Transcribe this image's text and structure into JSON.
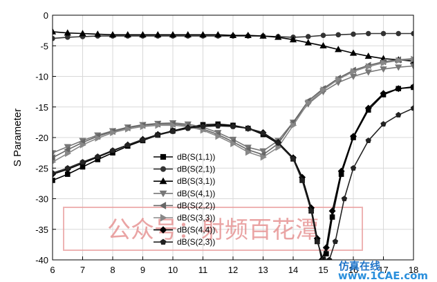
{
  "chart_data": {
    "type": "line",
    "title": "",
    "xlabel": "",
    "ylabel": "S Parameter",
    "xlim": [
      6,
      18
    ],
    "ylim": [
      -40,
      0
    ],
    "xticks": [
      6,
      7,
      8,
      9,
      10,
      11,
      12,
      13,
      14,
      15,
      16,
      17,
      18
    ],
    "yticks": [
      0,
      -5,
      -10,
      -15,
      -20,
      -25,
      -30,
      -35,
      -40
    ],
    "grid": true,
    "legend_position": "center-left",
    "series": [
      {
        "name": "dB(S(1,1))",
        "color": "#000000",
        "marker": "square",
        "x": [
          6,
          6.5,
          7,
          7.5,
          8,
          8.5,
          9,
          9.5,
          10,
          10.5,
          11,
          11.5,
          12,
          12.5,
          13,
          13.5,
          14,
          14.3,
          14.6,
          14.8,
          15.0,
          15.1,
          15.3,
          15.6,
          16,
          16.5,
          17,
          17.5,
          18
        ],
        "y": [
          -27,
          -26,
          -24.8,
          -23.6,
          -22.5,
          -21.4,
          -20.5,
          -19.6,
          -18.9,
          -18.3,
          -17.9,
          -17.8,
          -18,
          -18.5,
          -19.5,
          -21,
          -23.5,
          -27,
          -32,
          -37,
          -40,
          -39,
          -33,
          -26,
          -20,
          -15.5,
          -13,
          -12,
          -11.8
        ]
      },
      {
        "name": "dB(S(2,1))",
        "color": "#333333",
        "marker": "circle",
        "x": [
          6,
          6.5,
          7,
          7.5,
          8,
          8.5,
          9,
          9.5,
          10,
          10.5,
          11,
          11.5,
          12,
          12.5,
          13,
          13.5,
          14,
          14.5,
          15,
          15.5,
          16,
          16.5,
          17,
          17.5,
          18
        ],
        "y": [
          -3.8,
          -3.6,
          -3.5,
          -3.4,
          -3.4,
          -3.4,
          -3.4,
          -3.4,
          -3.4,
          -3.4,
          -3.4,
          -3.4,
          -3.4,
          -3.4,
          -3.4,
          -3.5,
          -3.6,
          -3.5,
          -3.3,
          -3.2,
          -3.1,
          -3.0,
          -3.0,
          -3.0,
          -3.0
        ]
      },
      {
        "name": "dB(S(3,1))",
        "color": "#000000",
        "marker": "triangle",
        "x": [
          6,
          6.5,
          7,
          7.5,
          8,
          8.5,
          9,
          9.5,
          10,
          10.5,
          11,
          11.5,
          12,
          12.5,
          13,
          13.5,
          14,
          14.5,
          15,
          15.5,
          16,
          16.5,
          17,
          17.5,
          18
        ],
        "y": [
          -2.7,
          -2.9,
          -3.0,
          -3.1,
          -3.2,
          -3.2,
          -3.2,
          -3.2,
          -3.2,
          -3.2,
          -3.2,
          -3.2,
          -3.3,
          -3.3,
          -3.4,
          -3.6,
          -4.0,
          -4.5,
          -5.0,
          -5.6,
          -6.2,
          -6.7,
          -7.1,
          -7.3,
          -7.5
        ]
      },
      {
        "name": "dB(S(4,1))",
        "color": "#777777",
        "marker": "triangle-down",
        "x": [
          6,
          6.5,
          7,
          7.5,
          8,
          8.5,
          9,
          9.5,
          10,
          10.5,
          11,
          11.5,
          12,
          12.5,
          13,
          13.5,
          14,
          14.5,
          15,
          15.5,
          16,
          16.5,
          17,
          17.5,
          18
        ],
        "y": [
          -22.5,
          -21.5,
          -20.5,
          -19.6,
          -18.9,
          -18.3,
          -17.9,
          -17.7,
          -17.6,
          -17.8,
          -18.3,
          -19.2,
          -20.3,
          -21.6,
          -22.2,
          -20.5,
          -17.5,
          -14.5,
          -12.5,
          -11,
          -10,
          -9.3,
          -8.8,
          -8.5,
          -8.3
        ]
      },
      {
        "name": "dB(S(2,2))",
        "color": "#666666",
        "marker": "triangle-left",
        "x": [
          6,
          6.5,
          7,
          7.5,
          8,
          8.5,
          9,
          9.5,
          10,
          10.5,
          11,
          11.5,
          12,
          12.5,
          13,
          13.5,
          14,
          14.5,
          15,
          15.5,
          16,
          16.5,
          17,
          17.5,
          18
        ],
        "y": [
          -23.3,
          -22,
          -20.8,
          -19.8,
          -19,
          -18.4,
          -18,
          -17.8,
          -17.8,
          -18,
          -18.6,
          -19.5,
          -20.7,
          -22,
          -22.8,
          -21,
          -17.5,
          -14,
          -12,
          -10.3,
          -9,
          -8.2,
          -7.6,
          -7.3,
          -7.1
        ]
      },
      {
        "name": "dB(S(3,3))",
        "color": "#888888",
        "marker": "triangle-right",
        "x": [
          6,
          6.5,
          7,
          7.5,
          8,
          8.5,
          9,
          9.5,
          10,
          10.5,
          11,
          11.5,
          12,
          12.5,
          13,
          13.5,
          14,
          14.5,
          15,
          15.5,
          16,
          16.5,
          17,
          17.5,
          18
        ],
        "y": [
          -24,
          -22.6,
          -21.2,
          -20.1,
          -19.2,
          -18.6,
          -18.2,
          -18,
          -18,
          -18.2,
          -18.8,
          -19.8,
          -21,
          -22.4,
          -23.2,
          -21.6,
          -18,
          -14.3,
          -12.2,
          -10.5,
          -9.2,
          -8.4,
          -7.8,
          -7.4,
          -7.2
        ]
      },
      {
        "name": "dB(S(4,4))",
        "color": "#000000",
        "marker": "diamond",
        "x": [
          6,
          6.5,
          7,
          7.5,
          8,
          8.5,
          9,
          9.5,
          10,
          10.5,
          11,
          11.5,
          12,
          12.5,
          13,
          13.5,
          14,
          14.3,
          14.6,
          14.8,
          14.95,
          15.1,
          15.3,
          15.6,
          16,
          16.5,
          17,
          17.5,
          18
        ],
        "y": [
          -26,
          -25.2,
          -24.2,
          -23.2,
          -22.2,
          -21.2,
          -20.3,
          -19.5,
          -18.9,
          -18.4,
          -18.1,
          -18,
          -18.1,
          -18.5,
          -19.2,
          -20.8,
          -23.3,
          -26.5,
          -31.5,
          -36.5,
          -40,
          -38,
          -32,
          -25.5,
          -19.8,
          -15.2,
          -12.8,
          -12,
          -11.7
        ]
      },
      {
        "name": "dB(S(2,3))",
        "color": "#222222",
        "marker": "pentagon",
        "x": [
          6,
          6.5,
          7,
          7.5,
          8,
          8.5,
          9,
          9.5,
          10,
          10.5,
          11,
          11.5,
          12,
          12.5,
          13,
          13.5,
          14,
          14.3,
          14.6,
          14.8,
          15.0,
          15.2,
          15.4,
          15.7,
          16,
          16.5,
          17,
          17.5,
          18
        ],
        "y": [
          -25.8,
          -25,
          -24,
          -23.1,
          -22.1,
          -21.2,
          -20.4,
          -19.6,
          -19,
          -18.5,
          -18.2,
          -18.1,
          -18.2,
          -18.5,
          -19.3,
          -20.9,
          -23.5,
          -27,
          -32,
          -37,
          -40,
          -40,
          -37,
          -30,
          -25,
          -20.5,
          -17.8,
          -16.3,
          -15.2
        ]
      }
    ]
  },
  "watermark": "公众号：射频百花潭",
  "corner_logo": {
    "cn": "仿真在线",
    "url": "www.1CAE.com"
  }
}
